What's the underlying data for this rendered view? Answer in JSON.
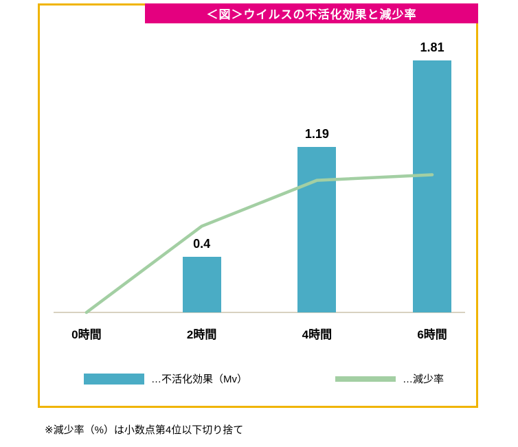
{
  "colors": {
    "title_bg": "#e4007f",
    "border_yellow": "#f0b400",
    "bar_teal": "#4aacc5",
    "line_green": "#a3cfa3",
    "axis_line": "#d8d1c0",
    "text": "#000000"
  },
  "legend": {
    "bar_label": "…不活化効果（Mv）",
    "line_label": "…減少率"
  },
  "footnote": "※減少率（%）は小数点第4位以下切り捨て",
  "chart_data": {
    "type": "combo",
    "title": "＜図＞ウイルスの不活化効果と減少率",
    "categories": [
      "0時間",
      "2時間",
      "4時間",
      "6時間"
    ],
    "series": [
      {
        "name": "不活化効果（Mv）",
        "type": "bar",
        "color": "#4aacc5",
        "values": [
          0,
          0.4,
          1.19,
          1.81
        ],
        "data_labels": [
          "",
          "0.4",
          "1.19",
          "1.81"
        ]
      },
      {
        "name": "減少率",
        "type": "line",
        "color": "#a3cfa3",
        "values": [
          0,
          0.62,
          0.95,
          0.99
        ],
        "note": "secondary axis not shown; values estimated from plotted line height on the bar value scale"
      }
    ],
    "ylim": [
      0,
      2.0
    ],
    "grid": false,
    "y_axis_visible": false,
    "legend_position": "bottom"
  }
}
